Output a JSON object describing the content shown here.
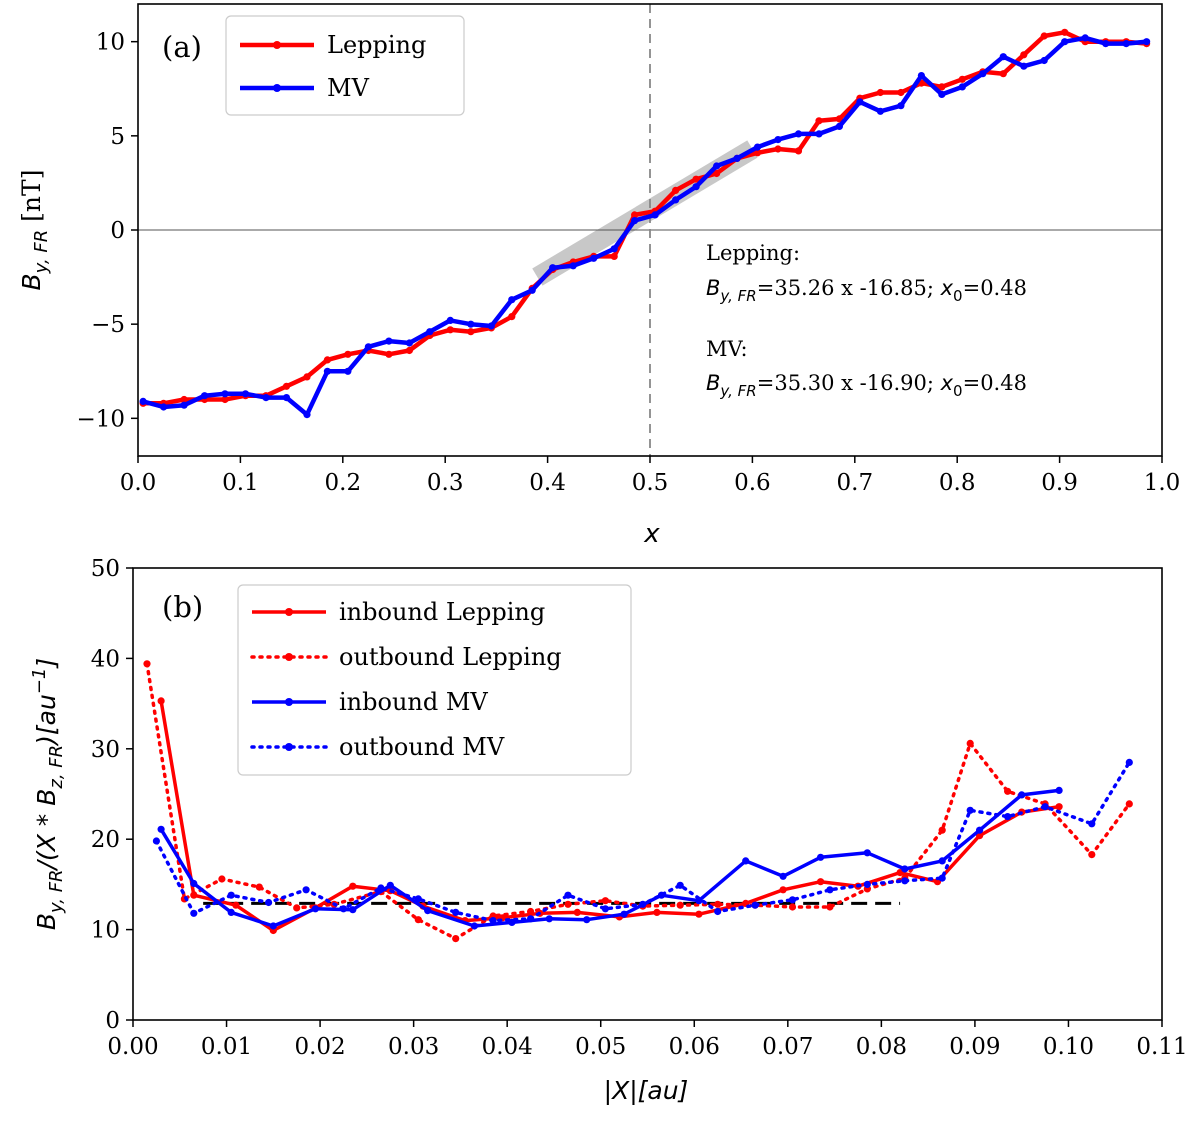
{
  "chart_data": [
    {
      "id": "a",
      "type": "line",
      "panel_label": "(a)",
      "xlabel": "x",
      "ylabel_main": "B",
      "ylabel_sub": "y, FR",
      "ylabel_unit": " [nT]",
      "xlim": [
        0.0,
        1.0
      ],
      "ylim": [
        -12,
        12
      ],
      "xticks": [
        0.0,
        0.1,
        0.2,
        0.3,
        0.4,
        0.5,
        0.6,
        0.7,
        0.8,
        0.9,
        1.0
      ],
      "xtick_labels": [
        "0.0",
        "0.1",
        "0.2",
        "0.3",
        "0.4",
        "0.5",
        "0.6",
        "0.7",
        "0.8",
        "0.9",
        "1.0"
      ],
      "yticks": [
        -10,
        -5,
        0,
        5,
        10
      ],
      "ytick_labels": [
        "−10",
        "−5",
        "0",
        "5",
        "10"
      ],
      "vline_x": 0.5,
      "hline_y": 0,
      "fit_band": {
        "x": [
          0.39,
          0.6
        ],
        "y": [
          -2.5,
          4.3
        ]
      },
      "legend": {
        "position": "top-left",
        "entries": [
          {
            "label": "Lepping",
            "color": "#ff0000"
          },
          {
            "label": "MV",
            "color": "#0000ff"
          }
        ]
      },
      "annotation": {
        "lep_title": "Lepping:",
        "lep_eq": "=35.26 x -16.85; ",
        "lep_x0": "=0.48",
        "mv_title": "MV:",
        "mv_eq": "=35.30 x -16.90; ",
        "mv_x0": "=0.48",
        "by_main": "B",
        "by_sub": "y, FR",
        "x0_main": "x",
        "x0_sub": "0"
      },
      "series": [
        {
          "name": "Lepping",
          "color": "#ff0000",
          "x": [
            0.005,
            0.025,
            0.045,
            0.065,
            0.085,
            0.105,
            0.125,
            0.145,
            0.165,
            0.185,
            0.205,
            0.225,
            0.245,
            0.265,
            0.285,
            0.305,
            0.325,
            0.345,
            0.365,
            0.385,
            0.405,
            0.425,
            0.445,
            0.465,
            0.485,
            0.505,
            0.525,
            0.545,
            0.565,
            0.585,
            0.605,
            0.625,
            0.645,
            0.665,
            0.685,
            0.705,
            0.725,
            0.745,
            0.765,
            0.785,
            0.805,
            0.825,
            0.845,
            0.865,
            0.885,
            0.905,
            0.925,
            0.945,
            0.965,
            0.985
          ],
          "y": [
            -9.2,
            -9.2,
            -9.0,
            -9.0,
            -9.0,
            -8.8,
            -8.8,
            -8.3,
            -7.8,
            -6.9,
            -6.6,
            -6.4,
            -6.6,
            -6.4,
            -5.6,
            -5.3,
            -5.4,
            -5.2,
            -4.6,
            -3.1,
            -2.1,
            -1.7,
            -1.4,
            -1.4,
            0.8,
            1.0,
            2.1,
            2.7,
            3.0,
            3.8,
            4.1,
            4.3,
            4.2,
            5.8,
            5.9,
            7.0,
            7.3,
            7.3,
            7.8,
            7.6,
            8.0,
            8.4,
            8.3,
            9.3,
            10.3,
            10.5,
            10.0,
            10.0,
            10.0,
            9.9
          ]
        },
        {
          "name": "MV",
          "color": "#0000ff",
          "x": [
            0.005,
            0.025,
            0.045,
            0.065,
            0.085,
            0.105,
            0.125,
            0.145,
            0.165,
            0.185,
            0.205,
            0.225,
            0.245,
            0.265,
            0.285,
            0.305,
            0.325,
            0.345,
            0.365,
            0.385,
            0.405,
            0.425,
            0.445,
            0.465,
            0.485,
            0.505,
            0.525,
            0.545,
            0.565,
            0.585,
            0.605,
            0.625,
            0.645,
            0.665,
            0.685,
            0.705,
            0.725,
            0.745,
            0.765,
            0.785,
            0.805,
            0.825,
            0.845,
            0.865,
            0.885,
            0.905,
            0.925,
            0.945,
            0.965,
            0.985
          ],
          "y": [
            -9.1,
            -9.4,
            -9.3,
            -8.8,
            -8.7,
            -8.7,
            -8.9,
            -8.9,
            -9.8,
            -7.5,
            -7.5,
            -6.2,
            -5.9,
            -6.0,
            -5.4,
            -4.8,
            -5.0,
            -5.1,
            -3.7,
            -3.2,
            -2.0,
            -1.9,
            -1.5,
            -1.0,
            0.5,
            0.8,
            1.6,
            2.3,
            3.4,
            3.8,
            4.4,
            4.8,
            5.1,
            5.1,
            5.5,
            6.8,
            6.3,
            6.6,
            8.2,
            7.2,
            7.6,
            8.3,
            9.2,
            8.7,
            9.0,
            10.0,
            10.2,
            9.9,
            9.9,
            10.0
          ]
        }
      ]
    },
    {
      "id": "b",
      "type": "line",
      "panel_label": "(b)",
      "xlabel": "|X|[au]",
      "ylabel_text": "B",
      "ylabel_sub1": "y, FR",
      "ylabel_mid": "/(X * B",
      "ylabel_sub2": "z, FR",
      "ylabel_end": ")[au",
      "ylabel_sup": "−1",
      "ylabel_close": "]",
      "xlim": [
        0.0,
        0.11
      ],
      "ylim": [
        0,
        50
      ],
      "xticks": [
        0.0,
        0.01,
        0.02,
        0.03,
        0.04,
        0.05,
        0.06,
        0.07,
        0.08,
        0.09,
        0.1,
        0.11
      ],
      "xtick_labels": [
        "0.00",
        "0.01",
        "0.02",
        "0.03",
        "0.04",
        "0.05",
        "0.06",
        "0.07",
        "0.08",
        "0.09",
        "0.10",
        "0.11"
      ],
      "yticks": [
        0,
        10,
        20,
        30,
        40,
        50
      ],
      "ytick_labels": [
        "0",
        "10",
        "20",
        "30",
        "40",
        "50"
      ],
      "reference_line": {
        "y": 12.9,
        "x": [
          0.0075,
          0.082
        ]
      },
      "legend": {
        "position": "top-left",
        "entries": [
          {
            "label": "inbound Lepping",
            "color": "#ff0000",
            "dash": "solid"
          },
          {
            "label": "outbound Lepping",
            "color": "#ff0000",
            "dash": "dotted"
          },
          {
            "label": "inbound MV",
            "color": "#0000ff",
            "dash": "solid"
          },
          {
            "label": "outbound MV",
            "color": "#0000ff",
            "dash": "dotted"
          }
        ]
      },
      "series": [
        {
          "name": "inbound Lepping",
          "color": "#ff0000",
          "dash": "solid",
          "x": [
            0.003,
            0.0065,
            0.011,
            0.015,
            0.0195,
            0.0235,
            0.0275,
            0.031,
            0.0355,
            0.0395,
            0.0435,
            0.0475,
            0.052,
            0.056,
            0.0605,
            0.0655,
            0.0695,
            0.0735,
            0.0775,
            0.082,
            0.086,
            0.0905,
            0.095,
            0.099
          ],
          "y": [
            35.3,
            13.8,
            12.7,
            9.9,
            12.4,
            14.8,
            14.3,
            12.6,
            11.0,
            11.3,
            11.8,
            11.9,
            11.4,
            11.9,
            11.7,
            12.9,
            14.4,
            15.3,
            14.8,
            16.3,
            15.3,
            20.4,
            23.0,
            23.6
          ]
        },
        {
          "name": "outbound Lepping",
          "color": "#ff0000",
          "dash": "dotted",
          "x": [
            0.0015,
            0.0055,
            0.0095,
            0.0135,
            0.0175,
            0.0215,
            0.0265,
            0.0305,
            0.0345,
            0.0385,
            0.0425,
            0.0465,
            0.0505,
            0.0545,
            0.0585,
            0.0625,
            0.0665,
            0.0705,
            0.0745,
            0.0785,
            0.0825,
            0.0865,
            0.0895,
            0.0935,
            0.0975,
            0.1025,
            0.1065
          ],
          "y": [
            39.4,
            13.4,
            15.6,
            14.7,
            12.4,
            12.8,
            14.2,
            11.1,
            9.0,
            11.5,
            12.0,
            12.8,
            13.2,
            12.6,
            12.7,
            12.8,
            12.7,
            12.5,
            12.5,
            14.5,
            15.7,
            21.0,
            30.6,
            25.3,
            23.9,
            18.3,
            23.9
          ]
        },
        {
          "name": "inbound MV",
          "color": "#0000ff",
          "dash": "solid",
          "x": [
            0.003,
            0.0065,
            0.0105,
            0.015,
            0.0195,
            0.0235,
            0.0275,
            0.0315,
            0.0365,
            0.0405,
            0.0445,
            0.0485,
            0.0525,
            0.0565,
            0.0605,
            0.0655,
            0.0695,
            0.0735,
            0.0785,
            0.0825,
            0.0865,
            0.0905,
            0.095,
            0.099
          ],
          "y": [
            21.1,
            15.1,
            11.9,
            10.4,
            12.3,
            12.2,
            14.9,
            12.1,
            10.4,
            10.8,
            11.2,
            11.1,
            11.7,
            13.8,
            13.2,
            17.6,
            15.9,
            18.0,
            18.5,
            16.7,
            17.6,
            21.0,
            24.9,
            25.4
          ]
        },
        {
          "name": "outbound MV",
          "color": "#0000ff",
          "dash": "dotted",
          "x": [
            0.0025,
            0.0065,
            0.0105,
            0.0145,
            0.0185,
            0.0225,
            0.0265,
            0.0305,
            0.0345,
            0.0385,
            0.0425,
            0.0465,
            0.0505,
            0.0545,
            0.0585,
            0.0625,
            0.0665,
            0.0705,
            0.0745,
            0.0785,
            0.0825,
            0.0865,
            0.0895,
            0.0935,
            0.0975,
            0.1025,
            0.1065
          ],
          "y": [
            19.8,
            11.8,
            13.8,
            13.0,
            14.4,
            12.3,
            14.6,
            13.4,
            11.9,
            11.0,
            11.2,
            13.8,
            12.3,
            12.8,
            14.9,
            12.0,
            12.7,
            13.3,
            14.4,
            15.0,
            15.4,
            15.7,
            23.2,
            22.5,
            23.6,
            21.7,
            28.5
          ]
        }
      ]
    }
  ]
}
